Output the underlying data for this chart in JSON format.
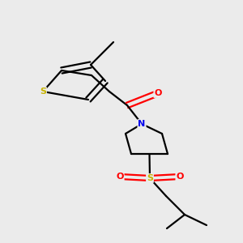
{
  "background_color": "#ebebeb",
  "atom_colors": {
    "S_thiophene": "#c8b400",
    "S_sulfonyl": "#c8b400",
    "N": "#0000ee",
    "O": "#ff0000",
    "C": "#000000"
  },
  "line_color": "#000000",
  "line_width": 1.6,
  "figsize": [
    3.0,
    3.0
  ],
  "dpi": 100
}
